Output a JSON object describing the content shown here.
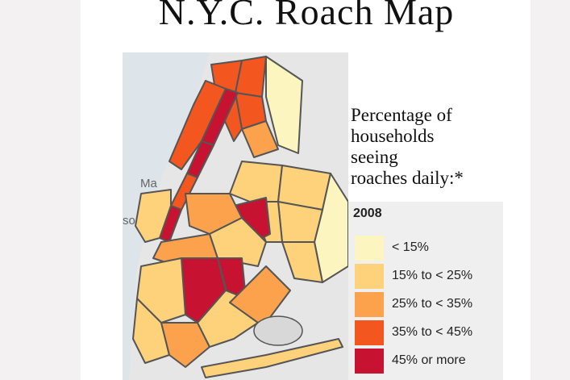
{
  "header": {
    "title": "N.Y.C. Roach Map"
  },
  "map": {
    "labels": [
      "Ma",
      "son"
    ]
  },
  "legend": {
    "caption_lines": [
      "Percentage of",
      "households",
      "seeing",
      "roaches daily:*"
    ],
    "title": "2008",
    "items": [
      {
        "label": "< 15%",
        "color": "#fdf5bf"
      },
      {
        "label": "15% to < 25%",
        "color": "#fdd27b"
      },
      {
        "label": "25% to < 35%",
        "color": "#fca24c"
      },
      {
        "label": "35% to < 45%",
        "color": "#f3571f"
      },
      {
        "label": "45% or more",
        "color": "#c81231"
      }
    ]
  }
}
